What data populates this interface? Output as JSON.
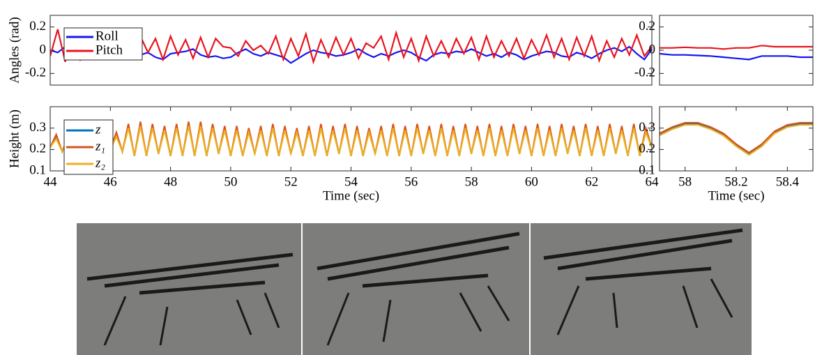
{
  "chart_data": [
    {
      "type": "line",
      "ylabel": "Angles (rad)",
      "xlim": [
        44,
        64
      ],
      "ylim": [
        -0.3,
        0.3
      ],
      "yticks": [
        -0.2,
        0,
        0.2
      ],
      "legend": "upper left",
      "x": [
        44,
        44.25,
        44.5,
        44.75,
        45,
        45.25,
        45.5,
        45.75,
        46,
        46.25,
        46.5,
        46.75,
        47,
        47.25,
        47.5,
        47.75,
        48,
        48.25,
        48.5,
        48.75,
        49,
        49.25,
        49.5,
        49.75,
        50,
        50.25,
        50.5,
        50.75,
        51,
        51.25,
        51.5,
        51.75,
        52,
        52.25,
        52.5,
        52.75,
        53,
        53.25,
        53.5,
        53.75,
        54,
        54.25,
        54.5,
        54.75,
        55,
        55.25,
        55.5,
        55.75,
        56,
        56.25,
        56.5,
        56.75,
        57,
        57.25,
        57.5,
        57.75,
        58,
        58.25,
        58.5,
        58.75,
        59,
        59.25,
        59.5,
        59.75,
        60,
        60.25,
        60.5,
        60.75,
        61,
        61.25,
        61.5,
        61.75,
        62,
        62.25,
        62.5,
        62.75,
        63,
        63.25,
        63.5,
        63.75,
        64
      ],
      "series": [
        {
          "name": "Roll",
          "color": "#1414f0",
          "values": [
            0,
            -0.02,
            0.03,
            -0.01,
            0.02,
            -0.03,
            0,
            -0.02,
            -0.01,
            -0.03,
            -0.02,
            0.01,
            -0.04,
            -0.02,
            -0.06,
            -0.08,
            -0.03,
            -0.02,
            -0.01,
            0.01,
            -0.04,
            -0.06,
            -0.05,
            -0.07,
            -0.06,
            -0.02,
            0.01,
            -0.03,
            -0.05,
            -0.02,
            -0.04,
            -0.06,
            -0.11,
            -0.07,
            -0.03,
            0,
            -0.02,
            -0.03,
            -0.05,
            -0.04,
            -0.02,
            0.01,
            -0.03,
            -0.06,
            -0.03,
            -0.05,
            -0.02,
            0,
            -0.02,
            -0.06,
            -0.09,
            -0.04,
            -0.02,
            -0.03,
            -0.01,
            -0.02,
            0.01,
            -0.02,
            -0.05,
            -0.03,
            -0.06,
            -0.02,
            -0.04,
            -0.08,
            -0.05,
            -0.03,
            -0.01,
            -0.02,
            -0.05,
            -0.06,
            -0.02,
            -0.04,
            -0.07,
            -0.03,
            0,
            0.02,
            -0.01,
            0.03,
            -0.03,
            -0.08,
            0.01
          ]
        },
        {
          "name": "Pitch",
          "color": "#e8141e",
          "values": [
            -0.05,
            0.18,
            -0.1,
            0.15,
            -0.08,
            0.05,
            0.02,
            -0.02,
            0.08,
            -0.06,
            0.1,
            -0.05,
            0.12,
            -0.02,
            0.1,
            -0.08,
            0.12,
            -0.04,
            0.09,
            -0.07,
            0.11,
            -0.06,
            0.1,
            0.03,
            0.02,
            -0.05,
            0.08,
            0,
            0.04,
            -0.03,
            0.12,
            -0.08,
            0.1,
            -0.05,
            0.14,
            -0.1,
            0.09,
            -0.06,
            0.11,
            -0.04,
            0.1,
            -0.07,
            0.06,
            0.02,
            0.12,
            -0.08,
            0.15,
            -0.06,
            0.1,
            -0.09,
            0.12,
            -0.05,
            0.08,
            -0.06,
            0.1,
            -0.03,
            0.11,
            -0.08,
            0.12,
            -0.06,
            0.08,
            -0.05,
            0.1,
            -0.07,
            0.09,
            -0.04,
            0.13,
            -0.06,
            0.1,
            -0.08,
            0.11,
            -0.05,
            0.12,
            -0.09,
            0.08,
            -0.06,
            0.1,
            -0.04,
            0.13,
            -0.05,
            0.03
          ]
        }
      ]
    },
    {
      "type": "line",
      "ylabel": "Height (m)",
      "xlabel": "Time (sec)",
      "xlim": [
        44,
        64
      ],
      "xticks": [
        44,
        46,
        48,
        50,
        52,
        54,
        56,
        58,
        60,
        62,
        64
      ],
      "ylim": [
        0.1,
        0.4
      ],
      "yticks": [
        0.1,
        0.2,
        0.3
      ],
      "legend": "upper left",
      "x": [
        44,
        44.2,
        44.4,
        44.6,
        44.8,
        45,
        45.2,
        45.4,
        45.6,
        45.8,
        46,
        46.2,
        46.4,
        46.6,
        46.8,
        47,
        47.2,
        47.4,
        47.6,
        47.8,
        48,
        48.2,
        48.4,
        48.6,
        48.8,
        49,
        49.2,
        49.4,
        49.6,
        49.8,
        50,
        50.2,
        50.4,
        50.6,
        50.8,
        51,
        51.2,
        51.4,
        51.6,
        51.8,
        52,
        52.2,
        52.4,
        52.6,
        52.8,
        53,
        53.2,
        53.4,
        53.6,
        53.8,
        54,
        54.2,
        54.4,
        54.6,
        54.8,
        55,
        55.2,
        55.4,
        55.6,
        55.8,
        56,
        56.2,
        56.4,
        56.6,
        56.8,
        57,
        57.2,
        57.4,
        57.6,
        57.8,
        58,
        58.2,
        58.4,
        58.6,
        58.8,
        59,
        59.2,
        59.4,
        59.6,
        59.8,
        60,
        60.2,
        60.4,
        60.6,
        60.8,
        61,
        61.2,
        61.4,
        61.6,
        61.8,
        62,
        62.2,
        62.4,
        62.6,
        62.8,
        63,
        63.2,
        63.4,
        63.6,
        63.8,
        64
      ],
      "series": [
        {
          "name": "z",
          "color": "#0072bd",
          "values": [
            0.21,
            0.26,
            0.19,
            0.25,
            0.2,
            0.26,
            0.19,
            0.25,
            0.21,
            0.26,
            0.2,
            0.27,
            0.19,
            0.31,
            0.17,
            0.32,
            0.17,
            0.31,
            0.18,
            0.3,
            0.17,
            0.31,
            0.17,
            0.32,
            0.17,
            0.32,
            0.17,
            0.31,
            0.18,
            0.3,
            0.17,
            0.3,
            0.17,
            0.29,
            0.18,
            0.3,
            0.17,
            0.31,
            0.17,
            0.3,
            0.18,
            0.29,
            0.17,
            0.3,
            0.17,
            0.31,
            0.17,
            0.3,
            0.18,
            0.31,
            0.17,
            0.3,
            0.17,
            0.29,
            0.18,
            0.3,
            0.17,
            0.31,
            0.17,
            0.3,
            0.17,
            0.31,
            0.18,
            0.3,
            0.17,
            0.31,
            0.17,
            0.3,
            0.17,
            0.31,
            0.18,
            0.3,
            0.17,
            0.31,
            0.17,
            0.3,
            0.17,
            0.31,
            0.18,
            0.3,
            0.17,
            0.31,
            0.17,
            0.3,
            0.17,
            0.31,
            0.18,
            0.3,
            0.17,
            0.31,
            0.17,
            0.3,
            0.17,
            0.31,
            0.18,
            0.3,
            0.17,
            0.31,
            0.17,
            0.29,
            0.21
          ]
        },
        {
          "name": "z₁",
          "color": "#d95319",
          "values": [
            0.21,
            0.27,
            0.19,
            0.26,
            0.2,
            0.27,
            0.19,
            0.26,
            0.21,
            0.27,
            0.2,
            0.28,
            0.19,
            0.32,
            0.17,
            0.33,
            0.17,
            0.32,
            0.18,
            0.31,
            0.17,
            0.32,
            0.17,
            0.33,
            0.17,
            0.33,
            0.17,
            0.32,
            0.18,
            0.31,
            0.17,
            0.31,
            0.17,
            0.3,
            0.18,
            0.31,
            0.17,
            0.32,
            0.17,
            0.31,
            0.18,
            0.3,
            0.17,
            0.31,
            0.17,
            0.32,
            0.17,
            0.31,
            0.18,
            0.32,
            0.17,
            0.31,
            0.17,
            0.3,
            0.18,
            0.31,
            0.17,
            0.32,
            0.17,
            0.31,
            0.17,
            0.32,
            0.18,
            0.31,
            0.17,
            0.32,
            0.17,
            0.31,
            0.17,
            0.32,
            0.18,
            0.31,
            0.17,
            0.32,
            0.17,
            0.31,
            0.17,
            0.32,
            0.18,
            0.31,
            0.17,
            0.32,
            0.17,
            0.31,
            0.17,
            0.32,
            0.18,
            0.31,
            0.17,
            0.32,
            0.17,
            0.31,
            0.17,
            0.32,
            0.18,
            0.31,
            0.17,
            0.32,
            0.17,
            0.3,
            0.21
          ]
        },
        {
          "name": "z₂",
          "color": "#edb120",
          "values": [
            0.21,
            0.25,
            0.19,
            0.24,
            0.2,
            0.25,
            0.19,
            0.24,
            0.21,
            0.25,
            0.2,
            0.26,
            0.19,
            0.3,
            0.17,
            0.31,
            0.17,
            0.3,
            0.18,
            0.29,
            0.17,
            0.3,
            0.17,
            0.31,
            0.17,
            0.31,
            0.17,
            0.3,
            0.18,
            0.29,
            0.17,
            0.29,
            0.17,
            0.28,
            0.18,
            0.29,
            0.17,
            0.3,
            0.17,
            0.29,
            0.18,
            0.28,
            0.17,
            0.29,
            0.17,
            0.3,
            0.17,
            0.29,
            0.18,
            0.3,
            0.17,
            0.29,
            0.17,
            0.28,
            0.18,
            0.29,
            0.17,
            0.3,
            0.17,
            0.29,
            0.17,
            0.3,
            0.18,
            0.29,
            0.17,
            0.3,
            0.17,
            0.29,
            0.17,
            0.3,
            0.18,
            0.29,
            0.17,
            0.3,
            0.17,
            0.29,
            0.17,
            0.3,
            0.18,
            0.29,
            0.17,
            0.3,
            0.17,
            0.29,
            0.17,
            0.3,
            0.18,
            0.29,
            0.17,
            0.3,
            0.17,
            0.29,
            0.17,
            0.3,
            0.18,
            0.29,
            0.17,
            0.3,
            0.17,
            0.28,
            0.21
          ]
        }
      ]
    },
    {
      "type": "line",
      "xlim": [
        57.9,
        58.5
      ],
      "ylim": [
        -0.3,
        0.3
      ],
      "yticks": [
        -0.2,
        0,
        0.2
      ],
      "x": [
        57.9,
        57.95,
        58,
        58.05,
        58.1,
        58.15,
        58.2,
        58.25,
        58.3,
        58.35,
        58.4,
        58.45,
        58.5
      ],
      "series": [
        {
          "name": "Roll",
          "color": "#1414f0",
          "values": [
            -0.03,
            -0.04,
            -0.04,
            -0.045,
            -0.05,
            -0.06,
            -0.07,
            -0.08,
            -0.05,
            -0.05,
            -0.05,
            -0.06,
            -0.06
          ]
        },
        {
          "name": "Pitch",
          "color": "#e8141e",
          "values": [
            0.02,
            0.02,
            0.025,
            0.02,
            0.02,
            0.01,
            0.02,
            0.02,
            0.04,
            0.03,
            0.03,
            0.03,
            0.03
          ]
        }
      ]
    },
    {
      "type": "line",
      "xlabel": "Time (sec)",
      "xlim": [
        57.9,
        58.5
      ],
      "xticks": [
        58,
        58.2,
        58.4
      ],
      "ylim": [
        0.1,
        0.4
      ],
      "yticks": [
        0.1,
        0.2,
        0.3
      ],
      "x": [
        57.9,
        57.95,
        58,
        58.05,
        58.1,
        58.15,
        58.2,
        58.25,
        58.3,
        58.35,
        58.4,
        58.45,
        58.5
      ],
      "series": [
        {
          "name": "z",
          "color": "#0072bd",
          "values": [
            0.27,
            0.3,
            0.32,
            0.32,
            0.3,
            0.27,
            0.22,
            0.18,
            0.22,
            0.28,
            0.31,
            0.32,
            0.32
          ]
        },
        {
          "name": "z₁",
          "color": "#d95319",
          "values": [
            0.275,
            0.305,
            0.325,
            0.325,
            0.305,
            0.275,
            0.225,
            0.185,
            0.225,
            0.285,
            0.315,
            0.325,
            0.325
          ]
        },
        {
          "name": "z₂",
          "color": "#edb120",
          "values": [
            0.265,
            0.295,
            0.315,
            0.315,
            0.295,
            0.265,
            0.215,
            0.175,
            0.215,
            0.275,
            0.305,
            0.315,
            0.315
          ]
        }
      ]
    }
  ]
}
